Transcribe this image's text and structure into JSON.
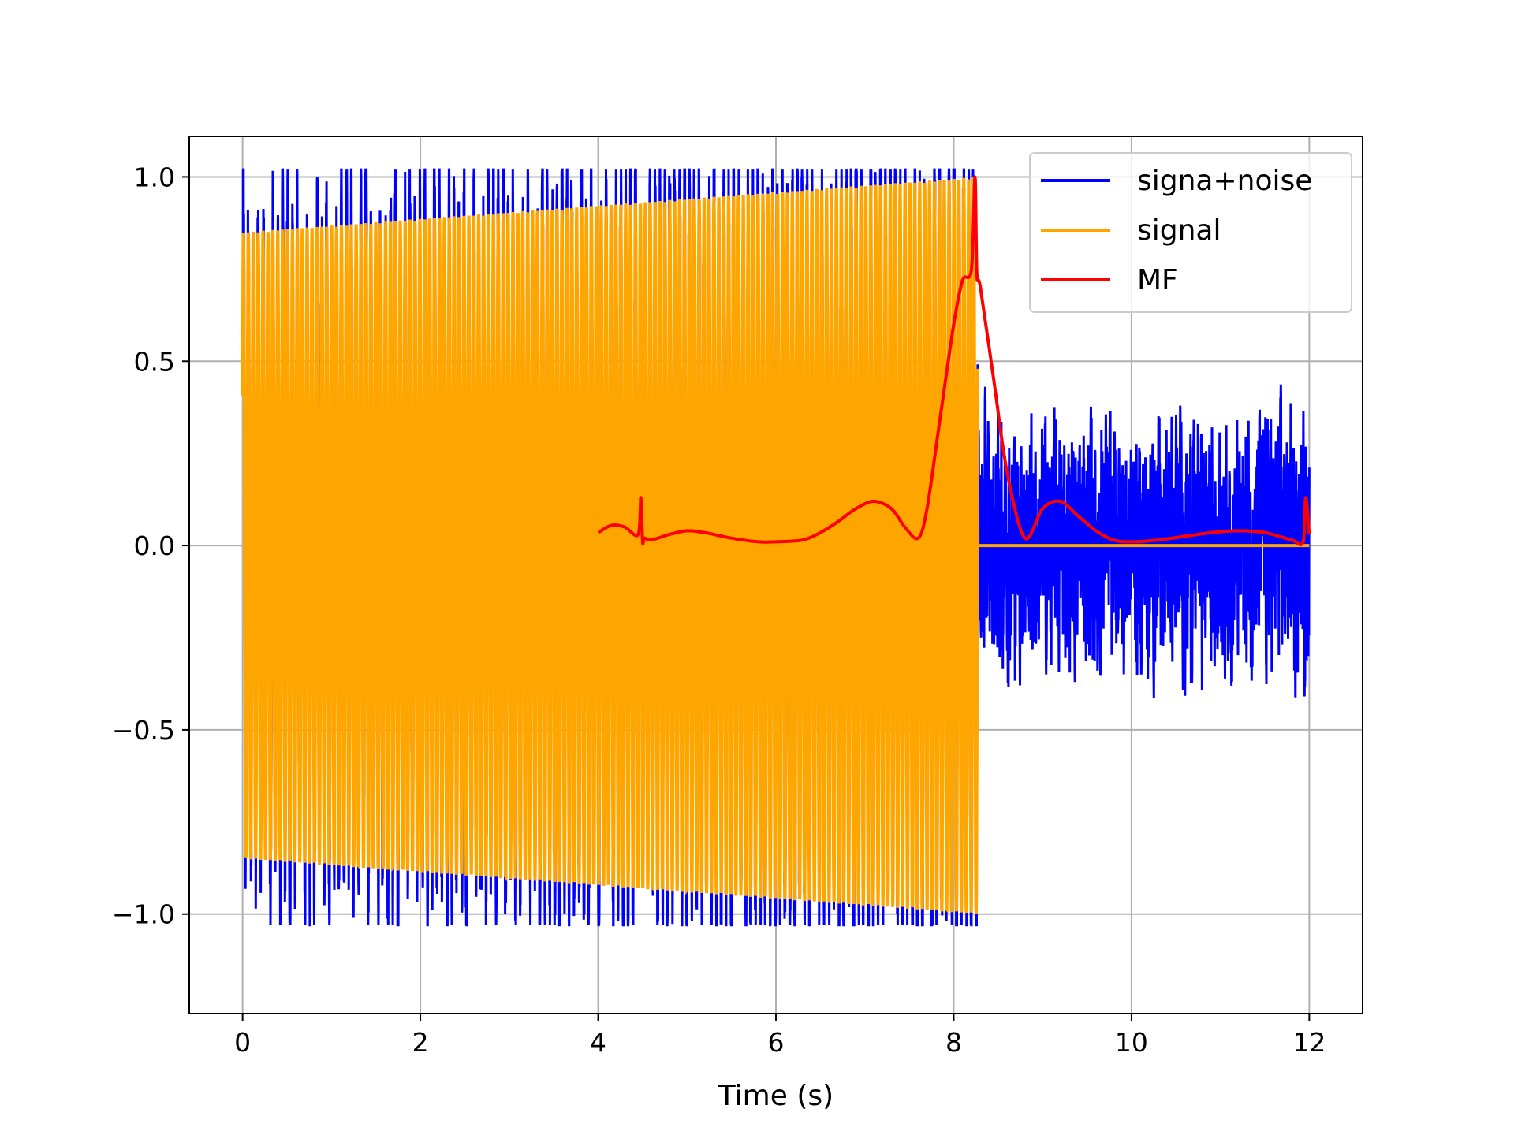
{
  "chart_data": {
    "type": "line",
    "title": "",
    "xlabel": "Time (s)",
    "ylabel": "",
    "xlim": [
      -0.6,
      12.6
    ],
    "ylim": [
      -1.27,
      1.11
    ],
    "xticks": [
      0,
      2,
      4,
      6,
      8,
      10,
      12
    ],
    "xtick_labels": [
      "0",
      "2",
      "4",
      "6",
      "8",
      "10",
      "12"
    ],
    "yticks": [
      -1.0,
      -0.5,
      0.0,
      0.5,
      1.0
    ],
    "ytick_labels": [
      "−1.0",
      "−0.5",
      "0.0",
      "0.5",
      "1.0"
    ],
    "grid": true,
    "legend_position": "top-right",
    "series": [
      {
        "name": "signa+noise",
        "color": "#0000ff",
        "kind": "chirp plus noise",
        "x_range": [
          0,
          12
        ],
        "amplitude_start": 0.85,
        "amplitude_end": 1.0,
        "signal_end": 8.27,
        "cycles": 150,
        "noise_range": [
          -0.58,
          0.57
        ]
      },
      {
        "name": "signal",
        "color": "#ffa500",
        "kind": "chirp",
        "x_range": [
          0,
          12
        ],
        "amplitude_start": 0.85,
        "amplitude_end": 1.0,
        "signal_end": 8.27,
        "cycles": 150
      },
      {
        "name": "MF",
        "color": "#ff0000",
        "kind": "matched filter output",
        "x": [
          4.0,
          4.15,
          4.3,
          4.45,
          4.48,
          4.5,
          4.52,
          4.6,
          4.8,
          5.0,
          5.2,
          5.5,
          5.8,
          6.0,
          6.3,
          6.5,
          6.7,
          6.9,
          7.1,
          7.3,
          7.45,
          7.6,
          7.7,
          7.85,
          8.0,
          8.1,
          8.2,
          8.24,
          8.26,
          8.3,
          8.45,
          8.6,
          8.8,
          9.0,
          9.2,
          9.4,
          9.6,
          9.8,
          10.0,
          10.3,
          10.6,
          10.9,
          11.2,
          11.5,
          11.8,
          11.93,
          11.96,
          12.0
        ],
        "y": [
          0.035,
          0.055,
          0.05,
          0.03,
          0.13,
          0.01,
          0.02,
          0.015,
          0.03,
          0.04,
          0.035,
          0.02,
          0.01,
          0.01,
          0.015,
          0.035,
          0.065,
          0.1,
          0.12,
          0.1,
          0.05,
          0.02,
          0.1,
          0.35,
          0.6,
          0.72,
          0.75,
          1.0,
          0.74,
          0.7,
          0.45,
          0.2,
          0.02,
          0.1,
          0.12,
          0.08,
          0.04,
          0.015,
          0.01,
          0.015,
          0.025,
          0.035,
          0.04,
          0.035,
          0.015,
          0.01,
          0.13,
          0.03
        ]
      }
    ]
  }
}
